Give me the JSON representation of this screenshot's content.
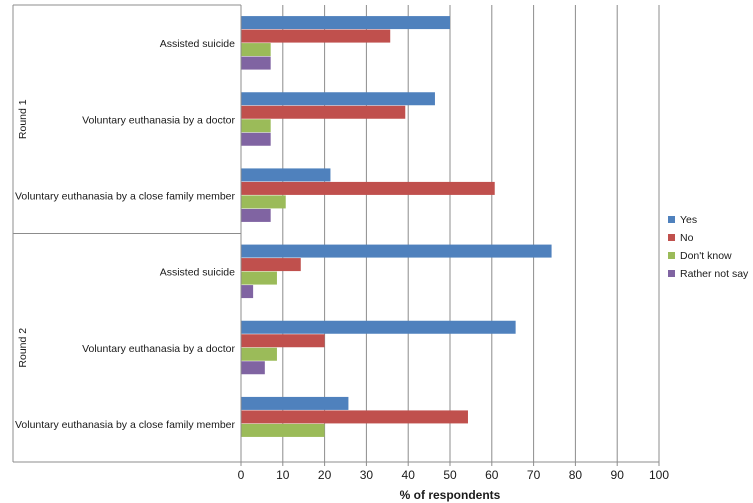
{
  "chart_data": {
    "type": "bar",
    "orientation": "horizontal",
    "title": "",
    "xlabel": "% of respondents",
    "ylabel": "",
    "xlim": [
      0,
      100
    ],
    "xticks": [
      0,
      10,
      20,
      30,
      40,
      50,
      60,
      70,
      80,
      90,
      100
    ],
    "grid": true,
    "legend_position": "right",
    "groups": [
      {
        "name": "Round 1",
        "categories": [
          "Assisted suicide",
          "Voluntary euthanasia by a doctor",
          "Voluntary euthanasia by a close family member"
        ]
      },
      {
        "name": "Round 2",
        "categories": [
          "Assisted suicide",
          "Voluntary euthanasia by a doctor",
          "Voluntary euthanasia by a close family member"
        ]
      }
    ],
    "series": [
      {
        "name": "Yes",
        "color": "#4f81bd",
        "values": [
          [
            50,
            46.4,
            21.4
          ],
          [
            74.3,
            65.7,
            25.7
          ]
        ]
      },
      {
        "name": "No",
        "color": "#c0504d",
        "values": [
          [
            35.7,
            39.3,
            60.7
          ],
          [
            14.3,
            20,
            54.3
          ]
        ]
      },
      {
        "name": "Don't know",
        "color": "#9bbb59",
        "values": [
          [
            7.1,
            7.1,
            10.7
          ],
          [
            8.6,
            8.6,
            20
          ]
        ]
      },
      {
        "name": "Rather not say",
        "color": "#8064a2",
        "values": [
          [
            7.1,
            7.1,
            7.1
          ],
          [
            2.9,
            5.7,
            0
          ]
        ]
      }
    ]
  }
}
